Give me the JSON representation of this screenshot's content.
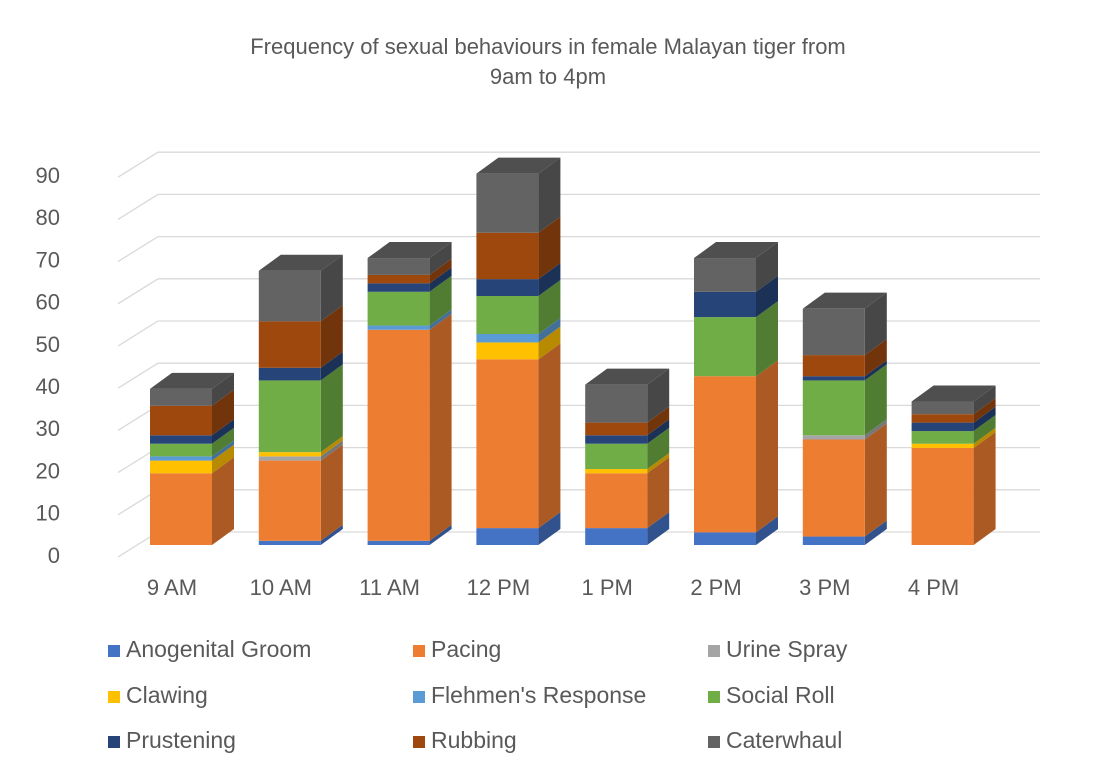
{
  "chart_data": {
    "type": "bar3d_stacked",
    "title": [
      "Frequency of sexual behaviours in female Malayan tiger from",
      "9am to 4pm"
    ],
    "categories": [
      "9 AM",
      "10 AM",
      "11 AM",
      "12 PM",
      "1 PM",
      "2 PM",
      "3 PM",
      "4 PM"
    ],
    "series": [
      {
        "name": "Anogenital Groom",
        "color": "#4472c4",
        "values": [
          0,
          1,
          1,
          4,
          4,
          3,
          2,
          0
        ]
      },
      {
        "name": "Pacing",
        "color": "#ed7d31",
        "values": [
          17,
          19,
          50,
          40,
          13,
          37,
          23,
          23
        ]
      },
      {
        "name": "Urine Spray",
        "color": "#a5a5a5",
        "values": [
          0,
          1,
          0,
          0,
          0,
          0,
          1,
          0
        ]
      },
      {
        "name": "Clawing",
        "color": "#ffc000",
        "values": [
          3,
          1,
          0,
          4,
          1,
          0,
          0,
          1
        ]
      },
      {
        "name": "Flehmen's Response",
        "color": "#5b9bd5",
        "values": [
          1,
          0,
          1,
          2,
          0,
          0,
          0,
          0
        ]
      },
      {
        "name": "Social Roll",
        "color": "#70ad47",
        "values": [
          3,
          17,
          8,
          9,
          6,
          14,
          13,
          3
        ]
      },
      {
        "name": "Prustening",
        "color": "#264478",
        "values": [
          2,
          3,
          2,
          4,
          2,
          6,
          1,
          2
        ]
      },
      {
        "name": "Rubbing",
        "color": "#9e480e",
        "values": [
          7,
          11,
          2,
          11,
          3,
          0,
          5,
          2
        ]
      },
      {
        "name": "Caterwhaul",
        "color": "#636363",
        "values": [
          4,
          12,
          4,
          14,
          9,
          8,
          11,
          3
        ]
      }
    ],
    "ylim": [
      0,
      90
    ],
    "yticks": [
      0,
      10,
      20,
      30,
      40,
      50,
      60,
      70,
      80,
      90
    ],
    "grid": true,
    "legend": "bottom"
  }
}
